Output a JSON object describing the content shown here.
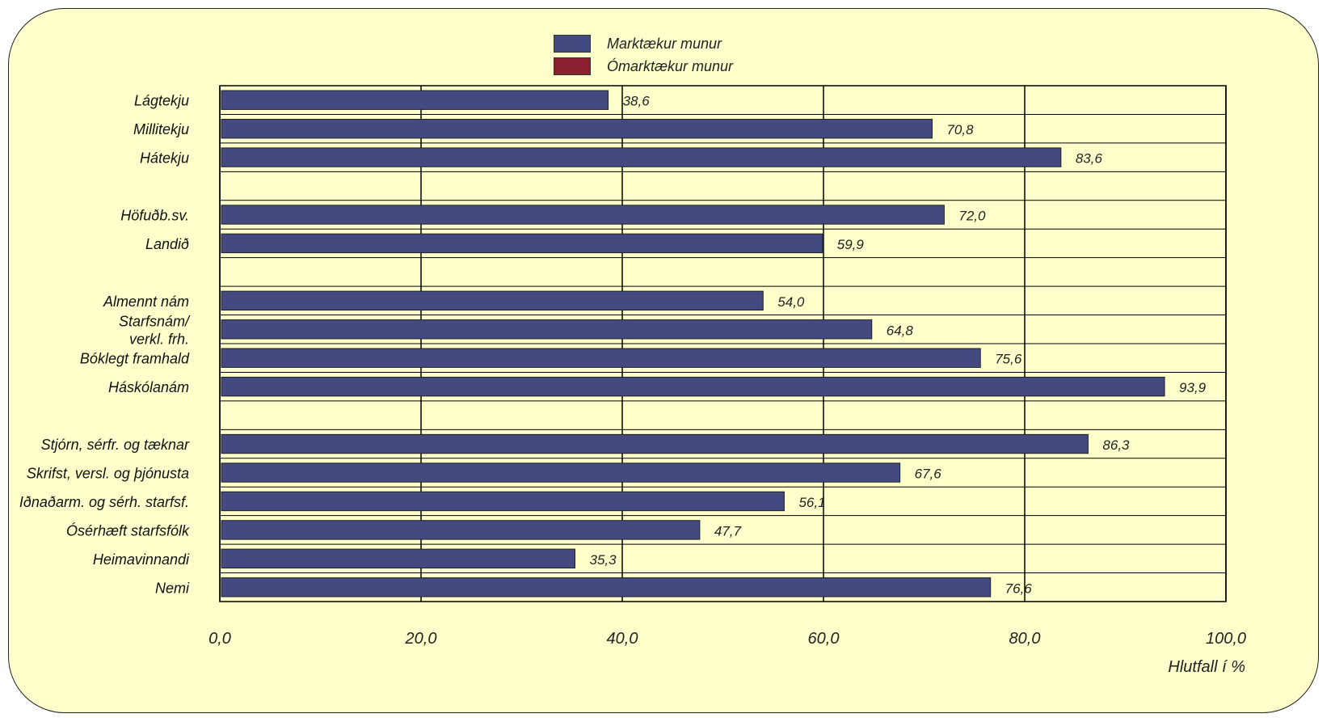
{
  "legend": [
    {
      "label": "Marktækur munur",
      "color": "#444a80"
    },
    {
      "label": "Ómarktækur munur",
      "color": "#8b2030"
    }
  ],
  "chart_data": {
    "type": "bar",
    "orientation": "horizontal",
    "xlabel": "Hlutfall í %",
    "xlim": [
      0,
      100
    ],
    "xticks": [
      "0,0",
      "20,0",
      "40,0",
      "60,0",
      "80,0",
      "100,0"
    ],
    "grid": true,
    "legend_position": "top-center",
    "categories": [
      "Lágtekju",
      "Millitekju",
      "Hátekju",
      "",
      "Höfuðb.sv.",
      "Landið",
      "",
      "Almennt nám",
      "Starfsnám/ verkl. frh.",
      "Bóklegt framhald",
      "Háskólanám",
      "",
      "Stjórn, sérfr. og tæknar",
      "Skrifst, versl. og þjónusta",
      "Iðnaðarm. og sérh. starfsf.",
      "Ósérhæft starfsfólk",
      "Heimavinnandi",
      "Nemi"
    ],
    "series": [
      {
        "name": "Marktækur munur",
        "values": [
          38.6,
          70.8,
          83.6,
          null,
          72.0,
          59.9,
          null,
          54.0,
          64.8,
          75.6,
          93.9,
          null,
          86.3,
          67.6,
          56.1,
          47.7,
          35.3,
          76.6
        ],
        "labels": [
          "38,6",
          "70,8",
          "83,6",
          "",
          "72,0",
          "59,9",
          "",
          "54,0",
          "64,8",
          "75,6",
          "93,9",
          "",
          "86,3",
          "67,6",
          "56,1",
          "47,7",
          "35,3",
          "76,6"
        ]
      }
    ]
  }
}
